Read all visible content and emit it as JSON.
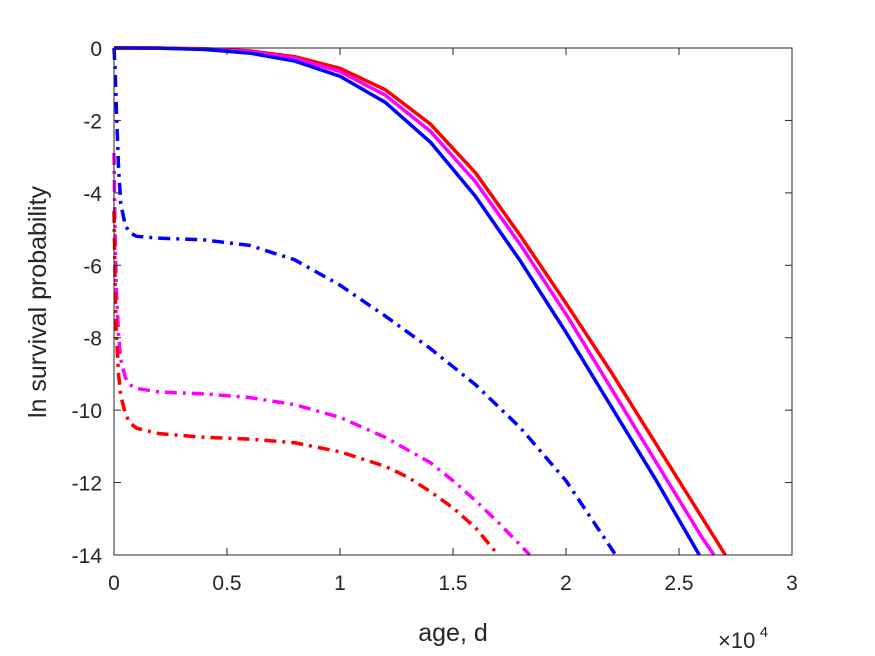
{
  "chart_data": {
    "type": "line",
    "title": "",
    "xlabel": "age, d",
    "ylabel": "ln survival probability",
    "x_multiplier": {
      "times": "×10",
      "exponent": "4"
    },
    "xlim": [
      0,
      30000
    ],
    "ylim": [
      -14,
      0
    ],
    "x_ticks": [
      0,
      5000,
      10000,
      15000,
      20000,
      25000,
      30000
    ],
    "x_tick_labels": [
      "0",
      "0.5",
      "1",
      "1.5",
      "2",
      "2.5",
      "3"
    ],
    "y_ticks": [
      0,
      -2,
      -4,
      -6,
      -8,
      -10,
      -12,
      -14
    ],
    "y_tick_labels": [
      "0",
      "-2",
      "-4",
      "-6",
      "-8",
      "-10",
      "-12",
      "-14"
    ],
    "grid": false,
    "legend": "none",
    "series": [
      {
        "color": "#ff0000",
        "style": "solid",
        "x": [
          0,
          2000,
          4000,
          6000,
          8000,
          10000,
          12000,
          14000,
          16000,
          18000,
          20000,
          22000,
          24000,
          26000,
          27050
        ],
        "y": [
          0,
          -0.002,
          -0.02,
          -0.08,
          -0.24,
          -0.56,
          -1.15,
          -2.1,
          -3.45,
          -5.2,
          -7.05,
          -8.95,
          -10.95,
          -12.95,
          -14
        ]
      },
      {
        "color": "#ff00ff",
        "style": "solid",
        "x": [
          0,
          2000,
          4000,
          6000,
          8000,
          10000,
          12000,
          14000,
          16000,
          18000,
          20000,
          22000,
          24000,
          26000,
          26550
        ],
        "y": [
          0,
          -0.002,
          -0.03,
          -0.1,
          -0.28,
          -0.65,
          -1.3,
          -2.3,
          -3.7,
          -5.45,
          -7.35,
          -9.4,
          -11.45,
          -13.5,
          -14
        ]
      },
      {
        "color": "#0000ff",
        "style": "solid",
        "x": [
          0,
          2000,
          4000,
          6000,
          8000,
          10000,
          12000,
          14000,
          16000,
          18000,
          20000,
          22000,
          24000,
          25900
        ],
        "y": [
          0,
          -0.003,
          -0.04,
          -0.14,
          -0.36,
          -0.78,
          -1.5,
          -2.6,
          -4.1,
          -5.9,
          -7.85,
          -9.9,
          -11.95,
          -14
        ]
      },
      {
        "color": "#0000ff",
        "style": "dashdot",
        "x": [
          0,
          50,
          100,
          200,
          300,
          500,
          700,
          1000,
          2000,
          4000,
          6000,
          8000,
          10000,
          12000,
          14000,
          16000,
          18000,
          20000,
          22200
        ],
        "y": [
          0,
          -0.6,
          -1.6,
          -3.3,
          -4.3,
          -4.9,
          -5.1,
          -5.2,
          -5.25,
          -5.3,
          -5.45,
          -5.85,
          -6.55,
          -7.4,
          -8.3,
          -9.3,
          -10.5,
          -11.95,
          -14
        ]
      },
      {
        "color": "#ff00ff",
        "style": "dashdot",
        "x": [
          0,
          50,
          100,
          200,
          300,
          500,
          700,
          1000,
          2000,
          4000,
          6000,
          8000,
          10000,
          12000,
          14000,
          15000,
          16000,
          17000,
          18400
        ],
        "y": [
          -2.9,
          -5.2,
          -6.6,
          -7.9,
          -8.6,
          -9.1,
          -9.3,
          -9.4,
          -9.5,
          -9.55,
          -9.65,
          -9.85,
          -10.2,
          -10.75,
          -11.45,
          -11.95,
          -12.5,
          -13.1,
          -14
        ]
      },
      {
        "color": "#ff0000",
        "style": "dashdot",
        "x": [
          0,
          50,
          100,
          200,
          300,
          500,
          700,
          1000,
          2000,
          4000,
          6000,
          8000,
          10000,
          12000,
          13000,
          14000,
          15000,
          16000,
          17000
        ],
        "y": [
          -4.5,
          -6.5,
          -7.8,
          -9.0,
          -9.6,
          -10.1,
          -10.35,
          -10.5,
          -10.65,
          -10.75,
          -10.8,
          -10.9,
          -11.15,
          -11.55,
          -11.85,
          -12.25,
          -12.7,
          -13.25,
          -14
        ]
      }
    ]
  }
}
